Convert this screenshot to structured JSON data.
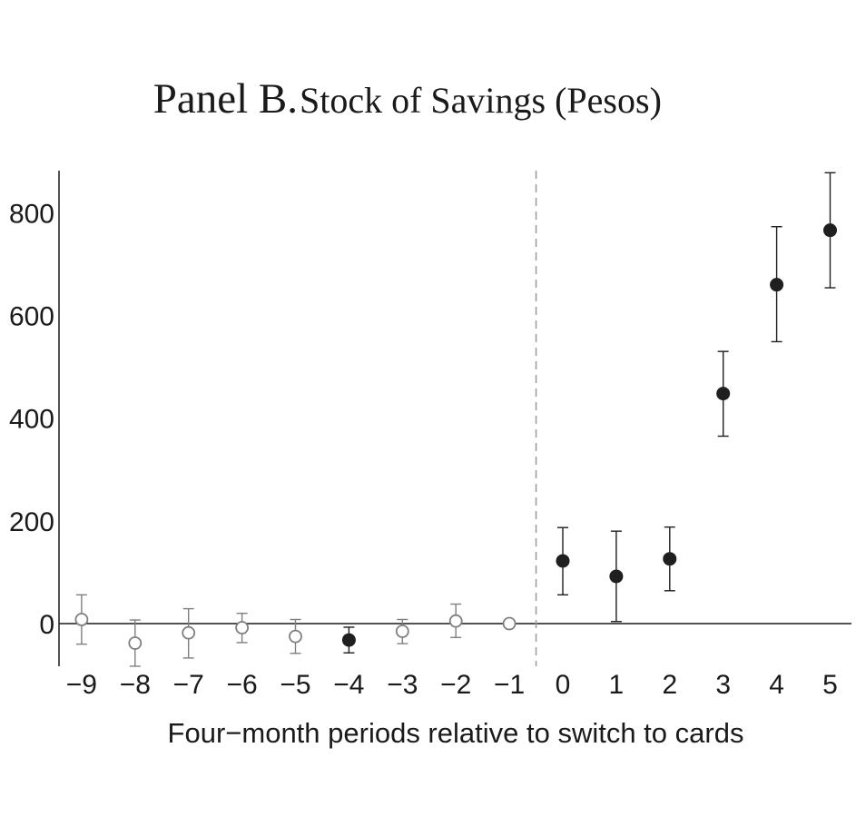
{
  "chart_data": {
    "type": "scatter",
    "title_main": "Panel B.",
    "title_sub": "Stock of Savings (Pesos)",
    "xlabel": "Four−month periods relative to switch to cards",
    "ylabel": "",
    "x_ticks": [
      "−9",
      "−8",
      "−7",
      "−6",
      "−5",
      "−4",
      "−3",
      "−2",
      "−1",
      "0",
      "1",
      "2",
      "3",
      "4",
      "5"
    ],
    "y_ticks": [
      "0",
      "200",
      "400",
      "600",
      "800"
    ],
    "ylim": [
      -85,
      880
    ],
    "xlim": [
      -9.4,
      5.4
    ],
    "reference_line_x": -0.5,
    "reference_line_y": 0,
    "colors": {
      "filled": "#1f1f1f",
      "hollow": "#7f7f7f",
      "axis": "#1a1a1a",
      "dashed": "#999999"
    },
    "points": [
      {
        "x": -9,
        "y": 8,
        "ci_low": -40,
        "ci_high": 56,
        "filled": false
      },
      {
        "x": -8,
        "y": -38,
        "ci_low": -83,
        "ci_high": 7,
        "filled": false
      },
      {
        "x": -7,
        "y": -18,
        "ci_low": -67,
        "ci_high": 29,
        "filled": false
      },
      {
        "x": -6,
        "y": -8,
        "ci_low": -37,
        "ci_high": 20,
        "filled": false
      },
      {
        "x": -5,
        "y": -25,
        "ci_low": -58,
        "ci_high": 8,
        "filled": false
      },
      {
        "x": -4,
        "y": -32,
        "ci_low": -57,
        "ci_high": -7,
        "filled": true
      },
      {
        "x": -3,
        "y": -15,
        "ci_low": -39,
        "ci_high": 8,
        "filled": false
      },
      {
        "x": -2,
        "y": 5,
        "ci_low": -27,
        "ci_high": 38,
        "filled": false
      },
      {
        "x": -1,
        "y": 0,
        "filled": false
      },
      {
        "x": 0,
        "y": 122,
        "ci_low": 56,
        "ci_high": 187,
        "filled": true
      },
      {
        "x": 1,
        "y": 92,
        "ci_low": 4,
        "ci_high": 180,
        "filled": true
      },
      {
        "x": 2,
        "y": 126,
        "ci_low": 64,
        "ci_high": 188,
        "filled": true
      },
      {
        "x": 3,
        "y": 448,
        "ci_low": 365,
        "ci_high": 530,
        "filled": true
      },
      {
        "x": 4,
        "y": 660,
        "ci_low": 549,
        "ci_high": 773,
        "filled": true
      },
      {
        "x": 5,
        "y": 766,
        "ci_low": 654,
        "ci_high": 878,
        "filled": true
      }
    ]
  }
}
